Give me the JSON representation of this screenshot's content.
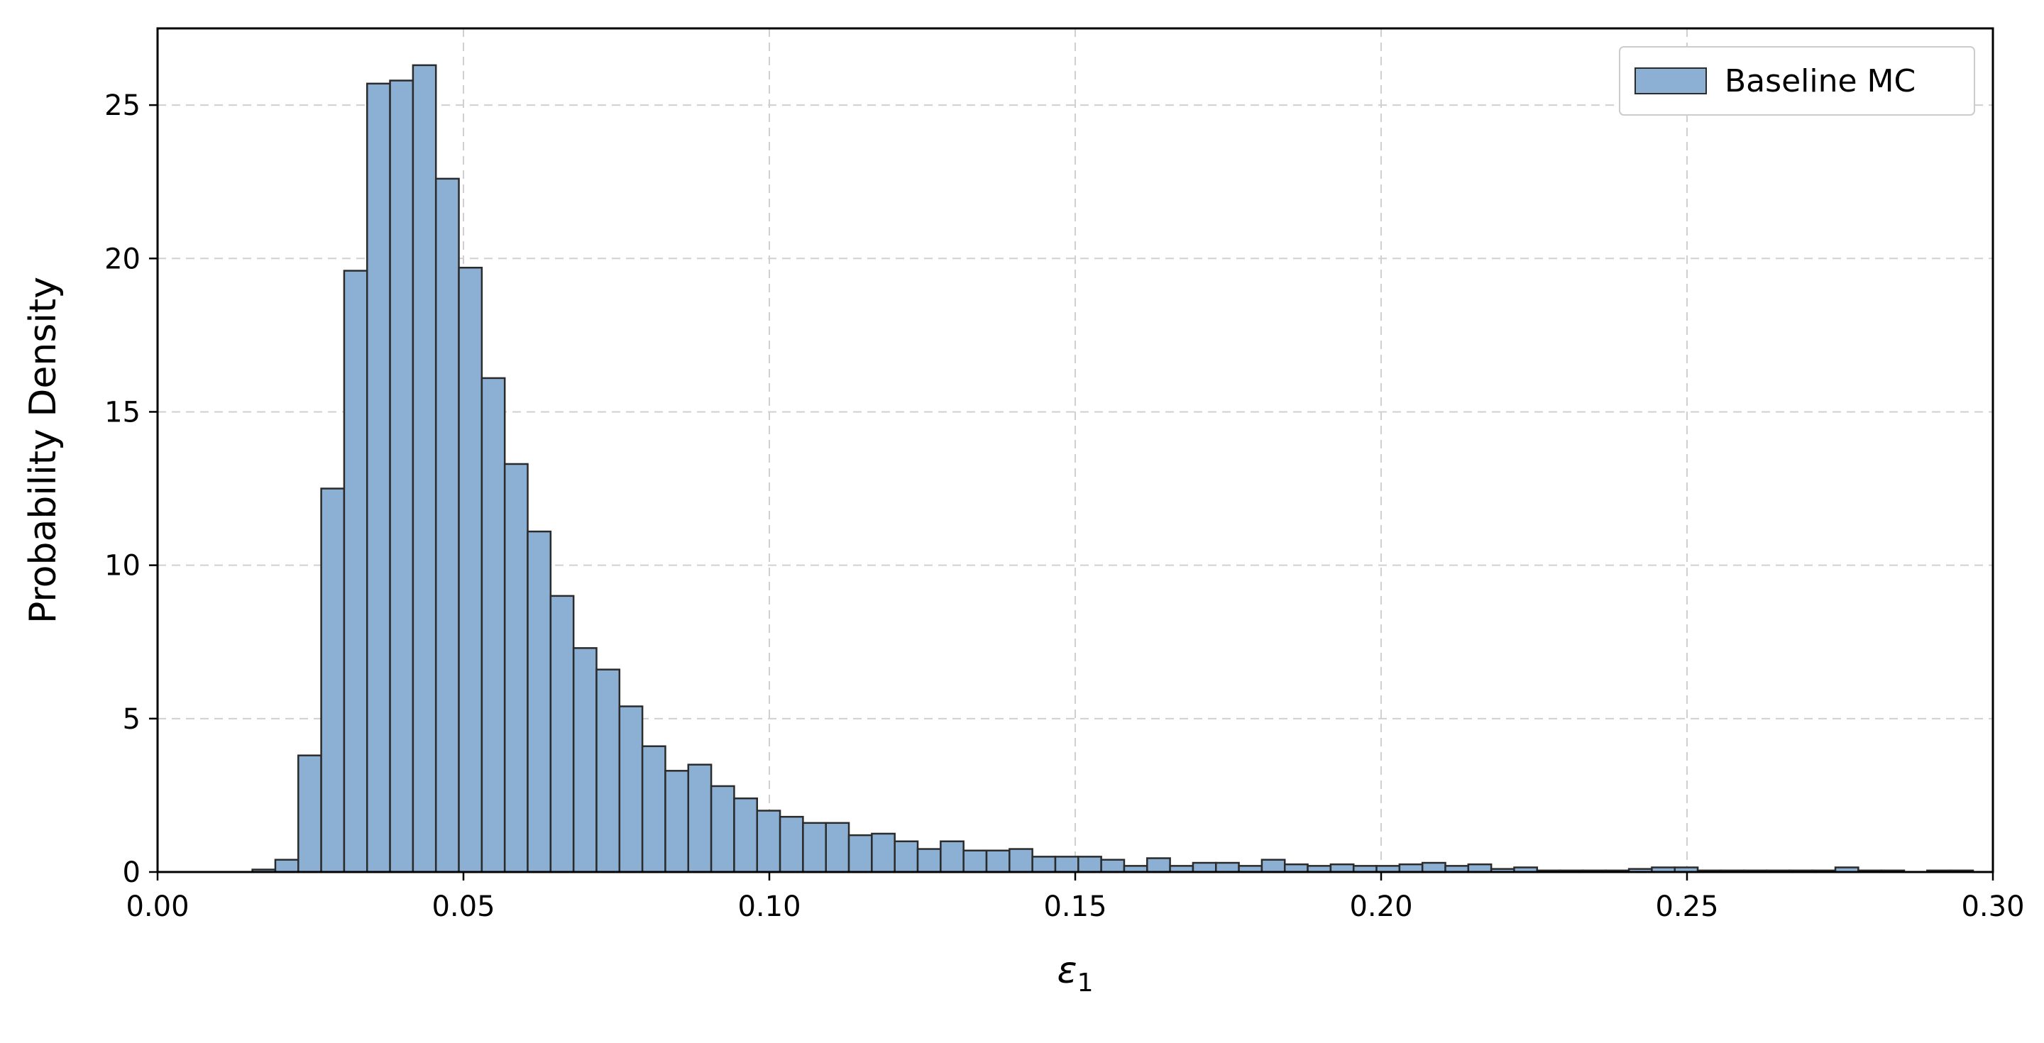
{
  "chart_data": {
    "type": "bar",
    "histogram": true,
    "xlabel": "ε",
    "xlabel_subscript": "1",
    "ylabel": "Probability Density",
    "xlim": [
      0.0,
      0.3
    ],
    "ylim": [
      0,
      27.5
    ],
    "xticks": [
      0.0,
      0.05,
      0.1,
      0.15,
      0.2,
      0.25,
      0.3
    ],
    "xtick_labels": [
      "0.00",
      "0.05",
      "0.10",
      "0.15",
      "0.20",
      "0.25",
      "0.30"
    ],
    "yticks": [
      0,
      5,
      10,
      15,
      20,
      25
    ],
    "ytick_labels": [
      "0",
      "5",
      "10",
      "15",
      "20",
      "25"
    ],
    "grid": true,
    "legend_position": "top-right",
    "series": [
      {
        "name": "Baseline MC",
        "color": "#8bb0d4",
        "edge_color": "#2b2b2b",
        "bin_width": 0.00375,
        "bin_starts": [
          0.0155,
          0.01925,
          0.023,
          0.02675,
          0.0305,
          0.03425,
          0.038,
          0.04175,
          0.0455,
          0.04925,
          0.053,
          0.05675,
          0.0605,
          0.06425,
          0.068,
          0.07175,
          0.0755,
          0.07925,
          0.083,
          0.08675,
          0.0905,
          0.09425,
          0.098,
          0.10175,
          0.1055,
          0.10925,
          0.113,
          0.11675,
          0.1205,
          0.12425,
          0.128,
          0.13175,
          0.1355,
          0.13925,
          0.143,
          0.14675,
          0.1505,
          0.15425,
          0.158,
          0.16175,
          0.1655,
          0.16925,
          0.173,
          0.17675,
          0.1805,
          0.18425,
          0.188,
          0.19175,
          0.1955,
          0.19925,
          0.203,
          0.20675,
          0.2105,
          0.21425,
          0.218,
          0.22175,
          0.2255,
          0.22925,
          0.233,
          0.23675,
          0.2405,
          0.24425,
          0.248,
          0.25175,
          0.2555,
          0.25925,
          0.263,
          0.26675,
          0.2705,
          0.27425,
          0.278,
          0.28175,
          0.2855,
          0.28925,
          0.293
        ],
        "values": [
          0.08,
          0.4,
          3.8,
          12.5,
          19.6,
          25.7,
          25.8,
          26.3,
          22.6,
          19.7,
          16.1,
          13.3,
          11.1,
          9.0,
          7.3,
          6.6,
          5.4,
          4.1,
          3.3,
          3.5,
          2.8,
          2.4,
          2.0,
          1.8,
          1.6,
          1.6,
          1.2,
          1.25,
          1.0,
          0.75,
          1.0,
          0.7,
          0.7,
          0.75,
          0.5,
          0.5,
          0.5,
          0.4,
          0.2,
          0.45,
          0.2,
          0.3,
          0.3,
          0.2,
          0.4,
          0.25,
          0.2,
          0.25,
          0.2,
          0.2,
          0.25,
          0.3,
          0.2,
          0.25,
          0.1,
          0.15,
          0.05,
          0.05,
          0.05,
          0.05,
          0.1,
          0.15,
          0.15,
          0.05,
          0.05,
          0.05,
          0.05,
          0.05,
          0.05,
          0.15,
          0.05,
          0.05,
          0.0,
          0.05,
          0.05
        ]
      }
    ]
  }
}
